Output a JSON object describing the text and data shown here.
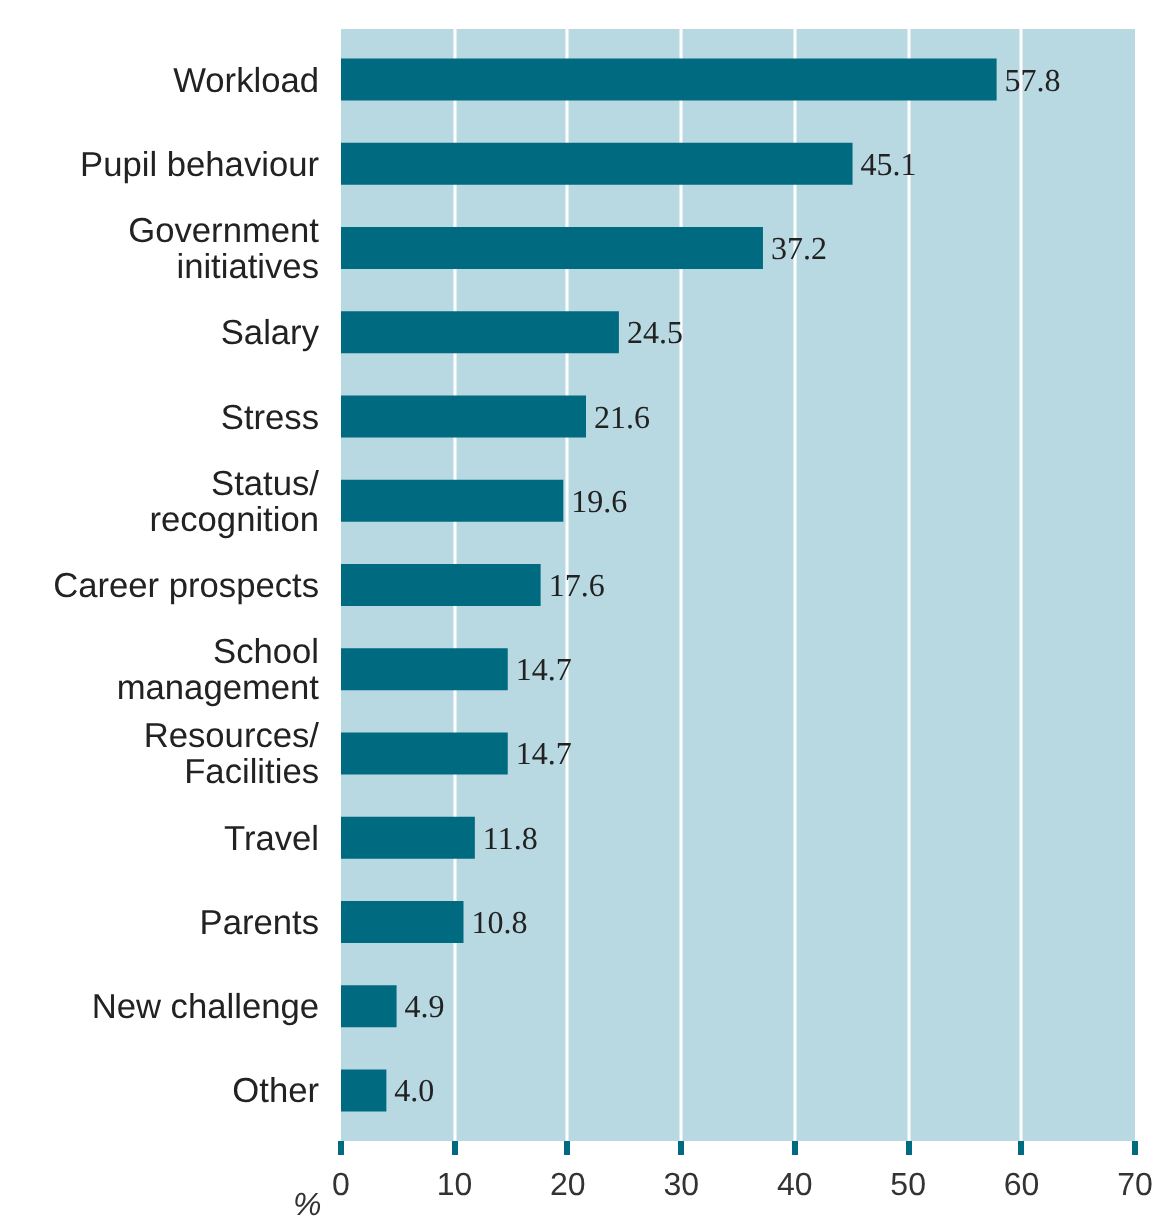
{
  "chart_data": {
    "type": "bar",
    "orientation": "horizontal",
    "xlabel": "%",
    "categories": [
      "Workload",
      "Pupil behaviour",
      "Government\ninitiatives",
      "Salary",
      "Stress",
      "Status/\nrecognition",
      "Career prospects",
      "School\nmanagement",
      "Resources/\nFacilities",
      "Travel",
      "Parents",
      "New challenge",
      "Other"
    ],
    "values": [
      57.8,
      45.1,
      37.2,
      24.5,
      21.6,
      19.6,
      17.6,
      14.7,
      14.7,
      11.8,
      10.8,
      4.9,
      4.0
    ],
    "value_labels": [
      "57.8",
      "45.1",
      "37.2",
      "24.5",
      "21.6",
      "19.6",
      "17.6",
      "14.7",
      "14.7",
      "11.8",
      "10.8",
      "4.9",
      "4.0"
    ],
    "color": "#006b80",
    "xlim": [
      0,
      70
    ],
    "xticks": [
      0,
      10,
      20,
      30,
      40,
      50,
      60,
      70
    ],
    "grid": "x"
  }
}
